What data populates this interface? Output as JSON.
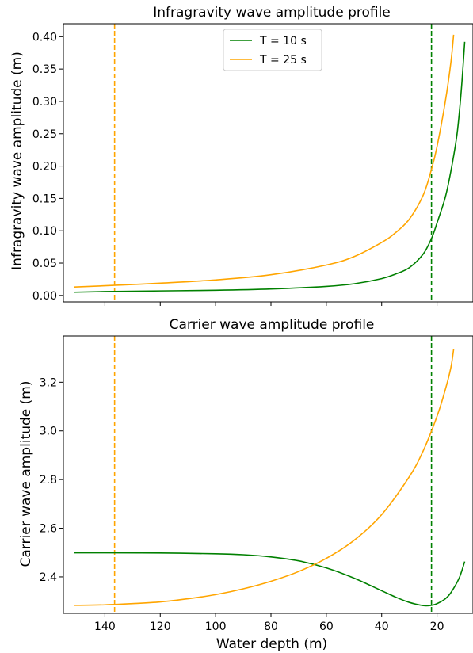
{
  "colors": {
    "green": "#008000",
    "orange": "#ffa500"
  },
  "chart_data": [
    {
      "type": "line",
      "title": "Infragravity wave amplitude profile",
      "xlabel": "",
      "ylabel": "Infragravity wave amplitude (m)",
      "x_inverted": true,
      "xlim": [
        155,
        7
      ],
      "ylim": [
        -0.01,
        0.42
      ],
      "x_ticks": [
        140,
        120,
        100,
        80,
        60,
        40,
        20
      ],
      "x_tick_labels_shown": false,
      "y_ticks": [
        0.0,
        0.05,
        0.1,
        0.15,
        0.2,
        0.25,
        0.3,
        0.35,
        0.4
      ],
      "y_tick_labels": [
        "0.00",
        "0.05",
        "0.10",
        "0.15",
        "0.20",
        "0.25",
        "0.30",
        "0.35",
        "0.40"
      ],
      "legend": {
        "placement": "top-center",
        "entries": [
          "T = 10 s",
          "T = 25 s"
        ]
      },
      "series": [
        {
          "name": "T = 10 s",
          "color": "green",
          "x": [
            151,
            140,
            120,
            100,
            80,
            60,
            50,
            40,
            35,
            30,
            25,
            22,
            20,
            17,
            15,
            13,
            12,
            11,
            10
          ],
          "y": [
            0.005,
            0.006,
            0.007,
            0.008,
            0.01,
            0.014,
            0.018,
            0.026,
            0.033,
            0.043,
            0.064,
            0.088,
            0.112,
            0.152,
            0.192,
            0.242,
            0.28,
            0.33,
            0.392
          ]
        },
        {
          "name": "T = 25 s",
          "color": "orange",
          "x": [
            151,
            140,
            120,
            100,
            80,
            60,
            50,
            40,
            35,
            30,
            25,
            22,
            20,
            17,
            15,
            14
          ],
          "y": [
            0.013,
            0.015,
            0.019,
            0.024,
            0.032,
            0.047,
            0.06,
            0.082,
            0.097,
            0.118,
            0.155,
            0.195,
            0.23,
            0.3,
            0.36,
            0.403
          ]
        }
      ],
      "vlines": [
        {
          "x": 136.5,
          "color": "orange",
          "style": "dashed"
        },
        {
          "x": 22,
          "color": "green",
          "style": "dashed"
        }
      ]
    },
    {
      "type": "line",
      "title": "Carrier wave amplitude profile",
      "xlabel": "Water depth (m)",
      "ylabel": "Carrier wave amplitude (m)",
      "x_inverted": true,
      "xlim": [
        155,
        7
      ],
      "ylim": [
        2.25,
        3.39
      ],
      "x_ticks": [
        140,
        120,
        100,
        80,
        60,
        40,
        20
      ],
      "x_tick_labels": [
        "140",
        "120",
        "100",
        "80",
        "60",
        "40",
        "20"
      ],
      "y_ticks": [
        2.4,
        2.6,
        2.8,
        3.0,
        3.2
      ],
      "y_tick_labels": [
        "2.4",
        "2.6",
        "2.8",
        "3.0",
        "3.2"
      ],
      "series": [
        {
          "name": "T = 10 s",
          "color": "green",
          "x": [
            151,
            140,
            120,
            100,
            90,
            80,
            70,
            60,
            50,
            40,
            35,
            30,
            25,
            22,
            20,
            17,
            15,
            12,
            10
          ],
          "y": [
            2.499,
            2.499,
            2.498,
            2.495,
            2.491,
            2.482,
            2.466,
            2.437,
            2.395,
            2.343,
            2.317,
            2.295,
            2.282,
            2.283,
            2.29,
            2.31,
            2.335,
            2.395,
            2.463
          ]
        },
        {
          "name": "T = 25 s",
          "color": "orange",
          "x": [
            151,
            140,
            130,
            120,
            110,
            100,
            90,
            80,
            70,
            60,
            50,
            40,
            30,
            25,
            20,
            17,
            15,
            14
          ],
          "y": [
            2.283,
            2.285,
            2.29,
            2.297,
            2.31,
            2.327,
            2.351,
            2.382,
            2.422,
            2.476,
            2.55,
            2.656,
            2.812,
            2.918,
            3.06,
            3.17,
            3.26,
            3.335
          ]
        }
      ],
      "vlines": [
        {
          "x": 136.5,
          "color": "orange",
          "style": "dashed"
        },
        {
          "x": 22,
          "color": "green",
          "style": "dashed"
        }
      ]
    }
  ]
}
